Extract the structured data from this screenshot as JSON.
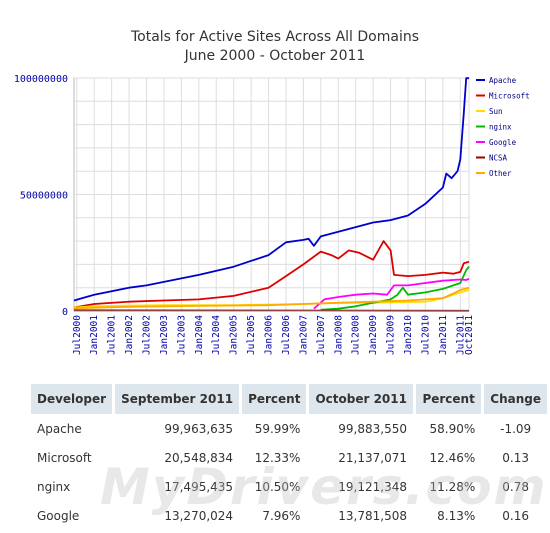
{
  "chart_data": {
    "type": "line",
    "title": "Totals for Active Sites Across All Domains",
    "subtitle": "June 2000 - October 2011",
    "ylim": [
      0,
      100000000
    ],
    "y_ticks": [
      "0",
      "50000000",
      "100000000"
    ],
    "x_ticks": [
      "Jul2000",
      "Jan2001",
      "Jul2001",
      "Jan2002",
      "Jul2002",
      "Jan2003",
      "Jul2003",
      "Jan2004",
      "Jul2004",
      "Jan2005",
      "Jul2005",
      "Jan2006",
      "Jul2006",
      "Jan2007",
      "Jul2007",
      "Jan2008",
      "Jul2008",
      "Jan2009",
      "Jul2009",
      "Jan2010",
      "Jul2010",
      "Jan2011",
      "Jul2011",
      "Oct2011"
    ],
    "legend_position": "right",
    "grid": true,
    "series": [
      {
        "name": "Apache",
        "color": "#0000cc",
        "x": [
          2000.42,
          2001.0,
          2002.0,
          2002.5,
          2003.0,
          2004.0,
          2005.0,
          2006.0,
          2006.5,
          2007.0,
          2007.15,
          2007.3,
          2007.5,
          2008.0,
          2008.5,
          2009.0,
          2009.5,
          2010.0,
          2010.5,
          2011.0,
          2011.1,
          2011.25,
          2011.42,
          2011.5,
          2011.6,
          2011.67,
          2011.75
        ],
        "values": [
          4500000.0,
          7000000.0,
          10000000.0,
          11000000.0,
          12500000.0,
          15500000.0,
          19000000.0,
          24000000.0,
          29500000.0,
          30500000.0,
          31000000.0,
          28000000.0,
          32000000.0,
          34000000.0,
          36000000.0,
          38000000.0,
          39000000.0,
          41000000.0,
          46000000.0,
          53000000.0,
          59000000.0,
          57000000.0,
          60000000.0,
          65000000.0,
          85000000.0,
          99900000.0,
          99900000.0
        ]
      },
      {
        "name": "Microsoft",
        "color": "#dd0000",
        "x": [
          2000.42,
          2001.0,
          2002.0,
          2003.0,
          2004.0,
          2005.0,
          2006.0,
          2006.5,
          2007.0,
          2007.5,
          2007.8,
          2008.0,
          2008.3,
          2008.6,
          2009.0,
          2009.3,
          2009.5,
          2009.6,
          2010.0,
          2010.5,
          2011.0,
          2011.3,
          2011.5,
          2011.6,
          2011.75
        ],
        "values": [
          1500000.0,
          3000000.0,
          4000000.0,
          4500000.0,
          5000000.0,
          6500000.0,
          10000000.0,
          15000000.0,
          20000000.0,
          25500000.0,
          24000000.0,
          22500000.0,
          26000000.0,
          25000000.0,
          22000000.0,
          30000000.0,
          26000000.0,
          15500000.0,
          15000000.0,
          15500000.0,
          16500000.0,
          16000000.0,
          16800000.0,
          20500000.0,
          21100000.0
        ]
      },
      {
        "name": "Sun",
        "color": "#ffdd00",
        "x": [
          2000.42,
          2001.0,
          2002.0,
          2003.0,
          2004.0,
          2005.0,
          2006.0,
          2007.0,
          2008.0,
          2009.0,
          2009.8,
          2010.5,
          2011.0,
          2011.5,
          2011.75
        ],
        "values": [
          1500000.0,
          2000000.0,
          2300000.0,
          2500000.0,
          2500000.0,
          2500000.0,
          2800000.0,
          3000000.0,
          3500000.0,
          3500000.0,
          3800000.0,
          4000000.0,
          5500000.0,
          8000000.0,
          9000000.0
        ]
      },
      {
        "name": "nginx",
        "color": "#00bb00",
        "x": [
          2007.5,
          2008.0,
          2008.5,
          2009.0,
          2009.5,
          2009.7,
          2009.85,
          2010.0,
          2010.5,
          2011.0,
          2011.3,
          2011.5,
          2011.67,
          2011.75
        ],
        "values": [
          500000.0,
          1000000.0,
          2000000.0,
          3500000.0,
          5000000.0,
          7000000.0,
          10000000.0,
          7000000.0,
          8000000.0,
          9500000.0,
          11000000.0,
          12000000.0,
          17500000.0,
          19100000.0
        ]
      },
      {
        "name": "Google",
        "color": "#ff00ff",
        "x": [
          2007.3,
          2007.6,
          2008.0,
          2008.5,
          2009.0,
          2009.4,
          2009.6,
          2010.0,
          2010.5,
          2011.0,
          2011.5,
          2011.67,
          2011.75
        ],
        "values": [
          1000000.0,
          5000000.0,
          6000000.0,
          7000000.0,
          7500000.0,
          7000000.0,
          11000000.0,
          11000000.0,
          12000000.0,
          13000000.0,
          13500000.0,
          13300000.0,
          13800000.0
        ]
      },
      {
        "name": "NCSA",
        "color": "#990000",
        "x": [
          2000.42,
          2011.75
        ],
        "values": [
          300000.0,
          100000.0
        ]
      },
      {
        "name": "Other",
        "color": "#ffaa00",
        "x": [
          2000.42,
          2002.0,
          2004.0,
          2006.0,
          2007.0,
          2008.0,
          2009.0,
          2010.0,
          2010.5,
          2011.0,
          2011.3,
          2011.5,
          2011.75
        ],
        "values": [
          1200000.0,
          1800000.0,
          2200000.0,
          2500000.0,
          3000000.0,
          3500000.0,
          4000000.0,
          4500000.0,
          5000000.0,
          5500000.0,
          7500000.0,
          9000000.0,
          10000000.0
        ]
      }
    ]
  },
  "table": {
    "headers": [
      "Developer",
      "September 2011",
      "Percent",
      "October 2011",
      "Percent",
      "Change"
    ],
    "rows": [
      [
        "Apache",
        "99,963,635",
        "59.99%",
        "99,883,550",
        "58.90%",
        "-1.09"
      ],
      [
        "Microsoft",
        "20,548,834",
        "12.33%",
        "21,137,071",
        "12.46%",
        "0.13"
      ],
      [
        "nginx",
        "17,495,435",
        "10.50%",
        "19,121,348",
        "11.28%",
        "0.78"
      ],
      [
        "Google",
        "13,270,024",
        "7.96%",
        "13,781,508",
        "8.13%",
        "0.16"
      ]
    ]
  },
  "watermark": "MyDrivers.com"
}
